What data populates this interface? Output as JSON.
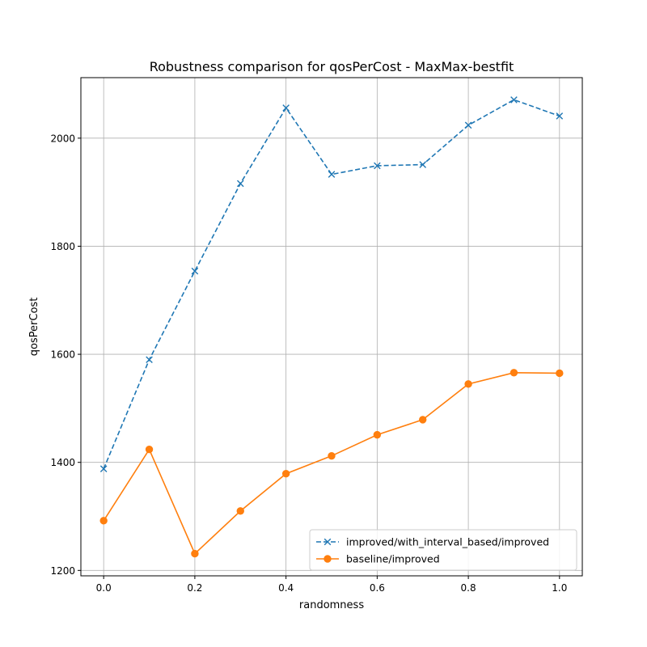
{
  "chart_data": {
    "type": "line",
    "title": "Robustness comparison for qosPerCost - MaxMax-bestfit",
    "xlabel": "randomness",
    "ylabel": "qosPerCost",
    "xlim": [
      -0.05,
      1.05
    ],
    "ylim": [
      1190,
      2112
    ],
    "xticks": [
      0.0,
      0.2,
      0.4,
      0.6,
      0.8,
      1.0
    ],
    "xtick_labels": [
      "0.0",
      "0.2",
      "0.4",
      "0.6",
      "0.8",
      "1.0"
    ],
    "yticks": [
      1200,
      1400,
      1600,
      1800,
      2000
    ],
    "ytick_labels": [
      "1200",
      "1400",
      "1600",
      "1800",
      "2000"
    ],
    "grid": true,
    "legend_position": "lower-right",
    "x": [
      0.0,
      0.1,
      0.2,
      0.3,
      0.4,
      0.5,
      0.6,
      0.7,
      0.8,
      0.9,
      1.0
    ],
    "series": [
      {
        "name": "improved/with_interval_based/improved",
        "color": "#1f77b4",
        "line_style": "dashed",
        "marker": "x",
        "values": [
          1388,
          1590,
          1754,
          1916,
          2056,
          1933,
          1949,
          1951,
          2024,
          2071,
          2041
        ]
      },
      {
        "name": "baseline/improved",
        "color": "#ff7f0e",
        "line_style": "solid",
        "marker": "circle",
        "values": [
          1292,
          1424,
          1231,
          1310,
          1379,
          1412,
          1451,
          1479,
          1545,
          1566,
          1565
        ]
      }
    ]
  }
}
